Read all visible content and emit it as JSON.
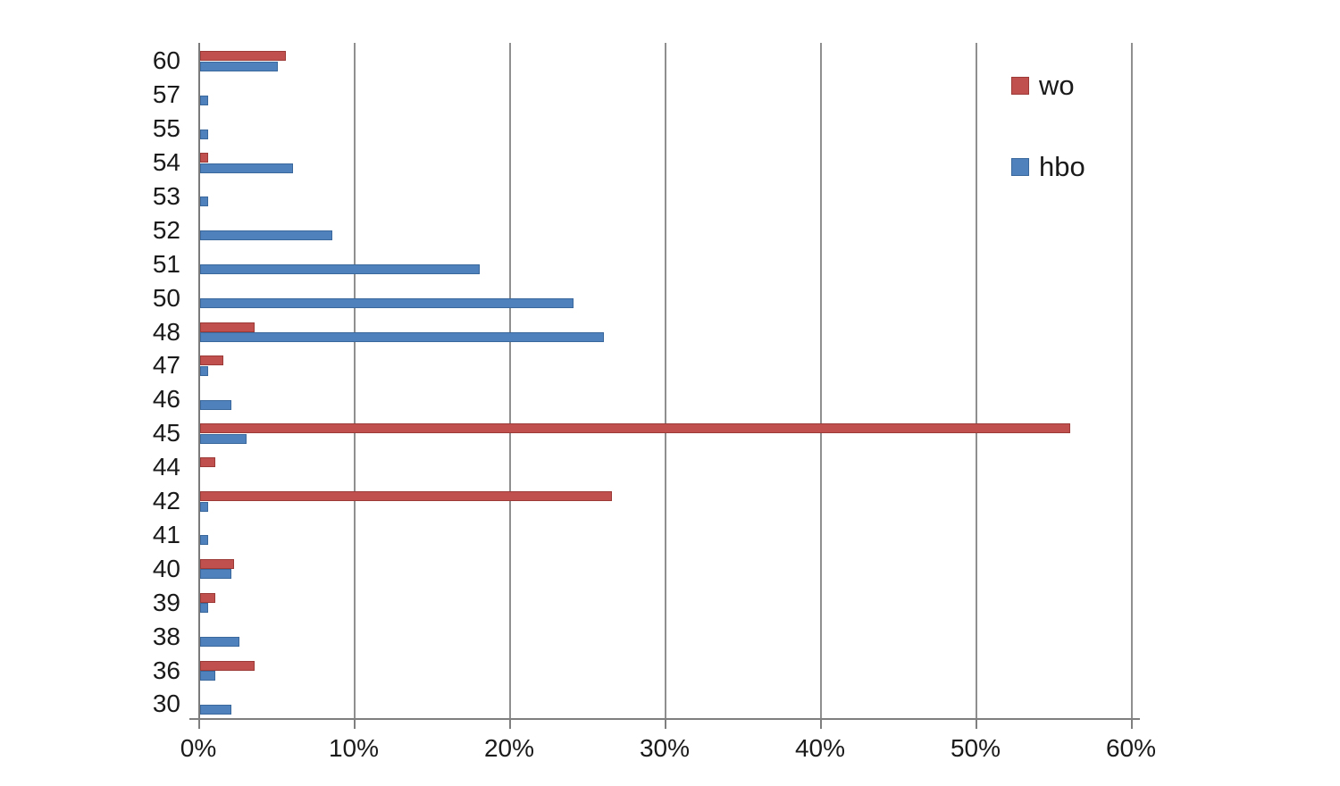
{
  "chart_data": {
    "type": "bar",
    "orientation": "horizontal",
    "title": "",
    "xlabel": "",
    "ylabel": "",
    "xlim": [
      0,
      60
    ],
    "x_tick_labels": [
      "0%",
      "10%",
      "20%",
      "30%",
      "40%",
      "50%",
      "60%"
    ],
    "x_tick_values": [
      0,
      10,
      20,
      30,
      40,
      50,
      60
    ],
    "grid": "vertical",
    "legend_position": "right-top",
    "categories": [
      "60",
      "57",
      "55",
      "54",
      "53",
      "52",
      "51",
      "50",
      "48",
      "47",
      "46",
      "45",
      "44",
      "42",
      "41",
      "40",
      "39",
      "38",
      "36",
      "30"
    ],
    "series": [
      {
        "name": "wo",
        "color": "#c0504d",
        "values": [
          5.5,
          0,
          0,
          0.5,
          0,
          0,
          0,
          0,
          3.5,
          1.5,
          0,
          56,
          1,
          26.5,
          0,
          2.2,
          1,
          0,
          3.5,
          0
        ]
      },
      {
        "name": "hbo",
        "color": "#4f81bd",
        "values": [
          5,
          0.5,
          0.5,
          6,
          0.5,
          8.5,
          18,
          24,
          26,
          0.5,
          2,
          3,
          0,
          0.5,
          0.5,
          2,
          0.5,
          2.5,
          1,
          2
        ]
      }
    ]
  },
  "colors": {
    "wo_fill": "#c0504d",
    "hbo_fill": "#4f81bd",
    "gridline": "#8f8f8f",
    "axis": "#7f7f7f",
    "text": "#1a1a1a"
  }
}
